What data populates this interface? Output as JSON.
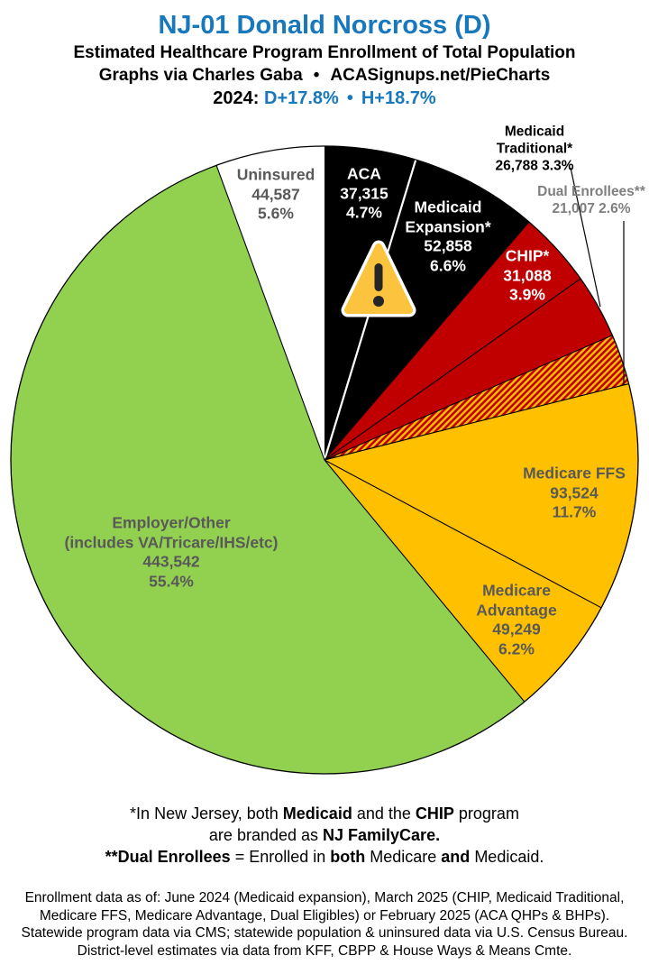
{
  "header": {
    "title": "NJ-01 Donald Norcross (D)",
    "subtitle1": "Estimated Healthcare Program Enrollment of Total Population",
    "subtitle2_left": "Graphs via Charles Gaba",
    "subtitle2_bullet": "•",
    "subtitle2_right": "ACASignups.net/PieCharts",
    "year_label": "2024:",
    "dem_margin": "D+17.8%",
    "margin_bullet": "•",
    "pres_margin": "H+18.7%",
    "accent_color": "#1878BE"
  },
  "chart_data": {
    "type": "pie",
    "title": "Estimated Healthcare Program Enrollment of Total Population",
    "district": "NJ-01 Donald Norcross (D)",
    "start_angle_deg": 0,
    "direction": "clockwise",
    "outline_color": "#000000",
    "hatch": {
      "base": "#C00000",
      "stripe": "#FFC000"
    },
    "slices": [
      {
        "name": "ACA",
        "value": 37315,
        "pct": 4.7,
        "label_lines": [
          "ACA",
          "37,315",
          "4.7%"
        ],
        "color": "#000000",
        "text_color": "#FFFFFF",
        "label_placement": "inside",
        "divider_before": "none"
      },
      {
        "name": "Medicaid Expansion",
        "value": 52858,
        "pct": 6.6,
        "label_lines": [
          "Medicaid",
          "Expansion*",
          "52,858",
          "6.6%"
        ],
        "color": "#000000",
        "text_color": "#FFFFFF",
        "label_placement": "inside",
        "divider_before": "#FFFFFF"
      },
      {
        "name": "CHIP",
        "value": 31088,
        "pct": 3.9,
        "label_lines": [
          "CHIP*",
          "31,088",
          "3.9%"
        ],
        "color": "#C00000",
        "text_color": "#FFFFFF",
        "label_placement": "inside",
        "divider_before": "#000000"
      },
      {
        "name": "Medicaid Traditional",
        "value": 26788,
        "pct": 3.3,
        "label_lines": [
          "Medicaid",
          "Traditional*",
          "26,788 3.3%"
        ],
        "color": "#C00000",
        "text_color": "#000000",
        "label_placement": "outside",
        "divider_before": "#000000"
      },
      {
        "name": "Dual Enrollees",
        "value": 21007,
        "pct": 2.6,
        "label_lines": [
          "Dual Enrollees**",
          "21,007 2.6%"
        ],
        "color": "hatch",
        "text_color": "#7F7F7F",
        "label_placement": "outside",
        "divider_before": "#000000"
      },
      {
        "name": "Medicare FFS",
        "value": 93524,
        "pct": 11.7,
        "label_lines": [
          "Medicare FFS",
          "93,524",
          "11.7%"
        ],
        "color": "#FFC000",
        "text_color": "#595959",
        "label_placement": "inside",
        "divider_before": "#000000"
      },
      {
        "name": "Medicare Advantage",
        "value": 49249,
        "pct": 6.2,
        "label_lines": [
          "Medicare",
          "Advantage",
          "49,249",
          "6.2%"
        ],
        "color": "#FFC000",
        "text_color": "#595959",
        "label_placement": "inside",
        "divider_before": "#000000"
      },
      {
        "name": "Employer/Other",
        "value": 443542,
        "pct": 55.4,
        "label_lines": [
          "Employer/Other",
          "(includes VA/Tricare/IHS/etc)",
          "443,542",
          "55.4%"
        ],
        "color": "#92D050",
        "text_color": "#595959",
        "label_placement": "inside",
        "divider_before": "#000000"
      },
      {
        "name": "Uninsured",
        "value": 44587,
        "pct": 5.6,
        "label_lines": [
          "Uninsured",
          "44,587",
          "5.6%"
        ],
        "color": "#FFFFFF",
        "text_color": "#595959",
        "label_placement": "inside",
        "divider_before": "#000000"
      }
    ]
  },
  "icons": {
    "warning": {
      "shape": "triangle-exclamation",
      "fill": "#FCC33F",
      "symbol_color": "#262626",
      "border_color": "#FFFFFF"
    }
  },
  "notes": [
    {
      "segments": [
        [
          "*In New Jersey, both ",
          false
        ],
        [
          "Medicaid",
          true
        ],
        [
          " and the ",
          false
        ],
        [
          "CHIP",
          true
        ],
        [
          " program",
          false
        ]
      ]
    },
    {
      "segments": [
        [
          "are branded as ",
          false
        ],
        [
          "NJ FamilyCare.",
          true
        ]
      ]
    },
    {
      "segments": [
        [
          "**Dual Enrollees",
          true
        ],
        [
          " = Enrolled in ",
          false
        ],
        [
          "both",
          true
        ],
        [
          " Medicare ",
          false
        ],
        [
          "and",
          true
        ],
        [
          " Medicaid.",
          false
        ]
      ]
    }
  ],
  "footer_lines": [
    "Enrollment data as of: June 2024 (Medicaid expansion), March 2025 (CHIP, Medicaid Traditional,",
    "Medicare FFS, Medicare Advantage, Dual Eligibles) or February 2025 (ACA QHPs & BHPs).",
    "Statewide program data via CMS; statewide population & uninsured data via U.S. Census Bureau.",
    "District-level estimates via data from KFF, CBPP & House Ways & Means Cmte."
  ]
}
